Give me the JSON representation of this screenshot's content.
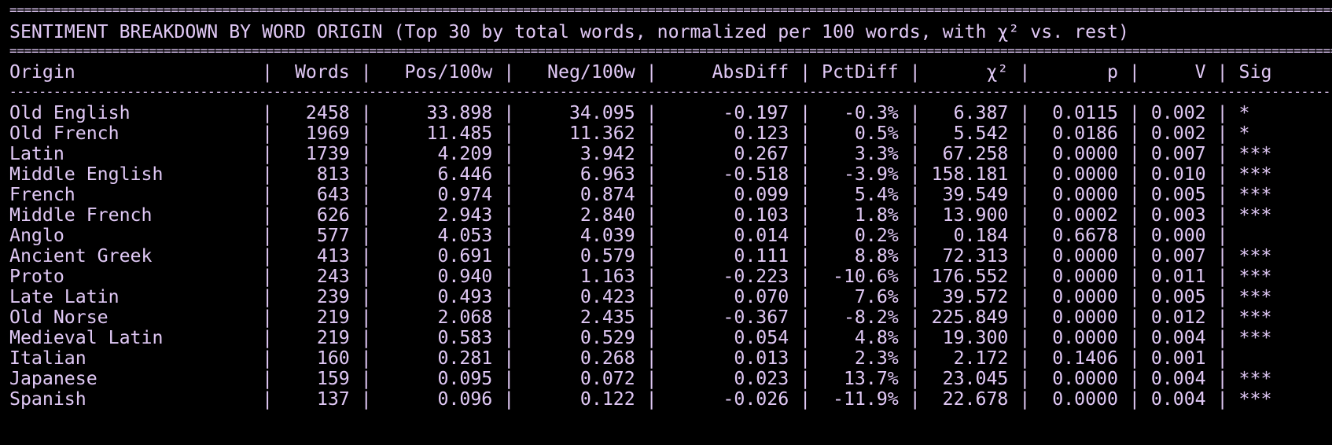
{
  "colors": {
    "background": "#000000",
    "foreground": "#e0c8f5"
  },
  "rules": {
    "double": "====================================================================================================================================================================================================",
    "single": "----------------------------------------------------------------------------------------------------------------------------------------------------------------------------------------------------------------"
  },
  "title": "SENTIMENT BREAKDOWN BY WORD ORIGIN (Top 30 by total words, normalized per 100 words, with χ² vs. rest)",
  "header": "Origin                 |  Words |   Pos/100w |   Neg/100w |     AbsDiff | PctDiff |      χ² |       p |     V | Sig",
  "rows": [
    "Old English            |   2458 |     33.898 |     34.095 |      -0.197 |   -0.3% |   6.387 |  0.0115 | 0.002 | *",
    "Old French             |   1969 |     11.485 |     11.362 |       0.123 |    0.5% |   5.542 |  0.0186 | 0.002 | *",
    "Latin                  |   1739 |      4.209 |      3.942 |       0.267 |    3.3% |  67.258 |  0.0000 | 0.007 | ***",
    "Middle English         |    813 |      6.446 |      6.963 |      -0.518 |   -3.9% | 158.181 |  0.0000 | 0.010 | ***",
    "French                 |    643 |      0.974 |      0.874 |       0.099 |    5.4% |  39.549 |  0.0000 | 0.005 | ***",
    "Middle French          |    626 |      2.943 |      2.840 |       0.103 |    1.8% |  13.900 |  0.0002 | 0.003 | ***",
    "Anglo                  |    577 |      4.053 |      4.039 |       0.014 |    0.2% |   0.184 |  0.6678 | 0.000 |",
    "Ancient Greek          |    413 |      0.691 |      0.579 |       0.111 |    8.8% |  72.313 |  0.0000 | 0.007 | ***",
    "Proto                  |    243 |      0.940 |      1.163 |      -0.223 |  -10.6% | 176.552 |  0.0000 | 0.011 | ***",
    "Late Latin             |    239 |      0.493 |      0.423 |       0.070 |    7.6% |  39.572 |  0.0000 | 0.005 | ***",
    "Old Norse              |    219 |      2.068 |      2.435 |      -0.367 |   -8.2% | 225.849 |  0.0000 | 0.012 | ***",
    "Medieval Latin         |    219 |      0.583 |      0.529 |       0.054 |    4.8% |  19.300 |  0.0000 | 0.004 | ***",
    "Italian                |    160 |      0.281 |      0.268 |       0.013 |    2.3% |   2.172 |  0.1406 | 0.001 |",
    "Japanese               |    159 |      0.095 |      0.072 |       0.023 |   13.7% |  23.045 |  0.0000 | 0.004 | ***",
    "Spanish                |    137 |      0.096 |      0.122 |      -0.026 |  -11.9% |  22.678 |  0.0000 | 0.004 | ***"
  ]
}
